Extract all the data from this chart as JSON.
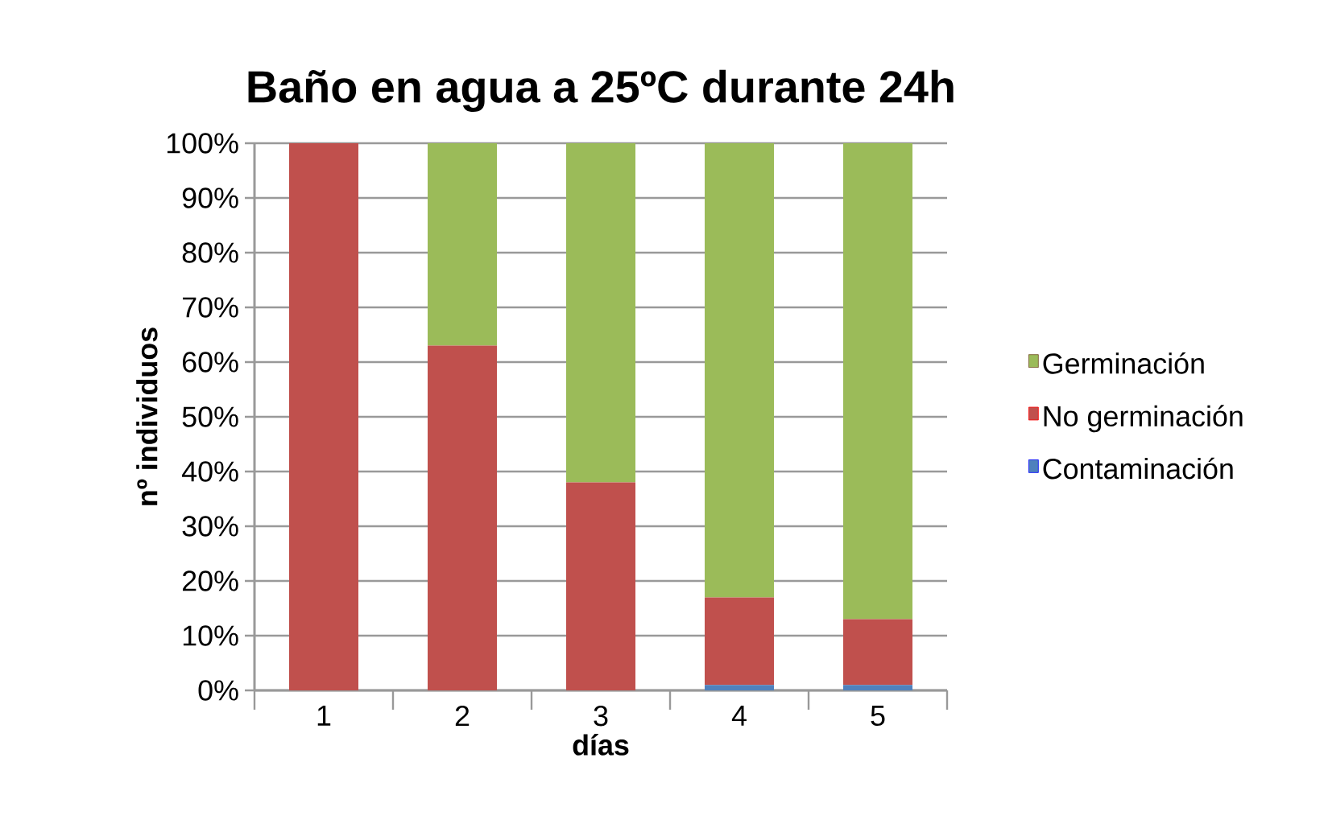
{
  "chart_data": {
    "type": "bar",
    "title": "Baño en agua a 25ºC durante 24h",
    "xlabel": "días",
    "ylabel": "nº individuos",
    "categories": [
      "1",
      "2",
      "3",
      "4",
      "5"
    ],
    "stacked": true,
    "series": [
      {
        "name": "Contaminación",
        "color": "#4f81bd",
        "values": [
          0,
          0,
          0,
          1,
          1
        ]
      },
      {
        "name": "No germinación",
        "color": "#c0504d",
        "values": [
          100,
          63,
          38,
          16,
          12
        ]
      },
      {
        "name": "Germinación",
        "color": "#9bbb59",
        "values": [
          0,
          37,
          62,
          83,
          87
        ]
      }
    ],
    "ylim": [
      0,
      100
    ],
    "yticks": [
      {
        "value": 0,
        "label": "0%"
      },
      {
        "value": 10,
        "label": "10%"
      },
      {
        "value": 20,
        "label": "20%"
      },
      {
        "value": 30,
        "label": "30%"
      },
      {
        "value": 40,
        "label": "40%"
      },
      {
        "value": 50,
        "label": "50%"
      },
      {
        "value": 60,
        "label": "60%"
      },
      {
        "value": 70,
        "label": "70%"
      },
      {
        "value": 80,
        "label": "80%"
      },
      {
        "value": 90,
        "label": "90%"
      },
      {
        "value": 100,
        "label": "100%"
      }
    ],
    "grid": "y",
    "legend": "right"
  }
}
